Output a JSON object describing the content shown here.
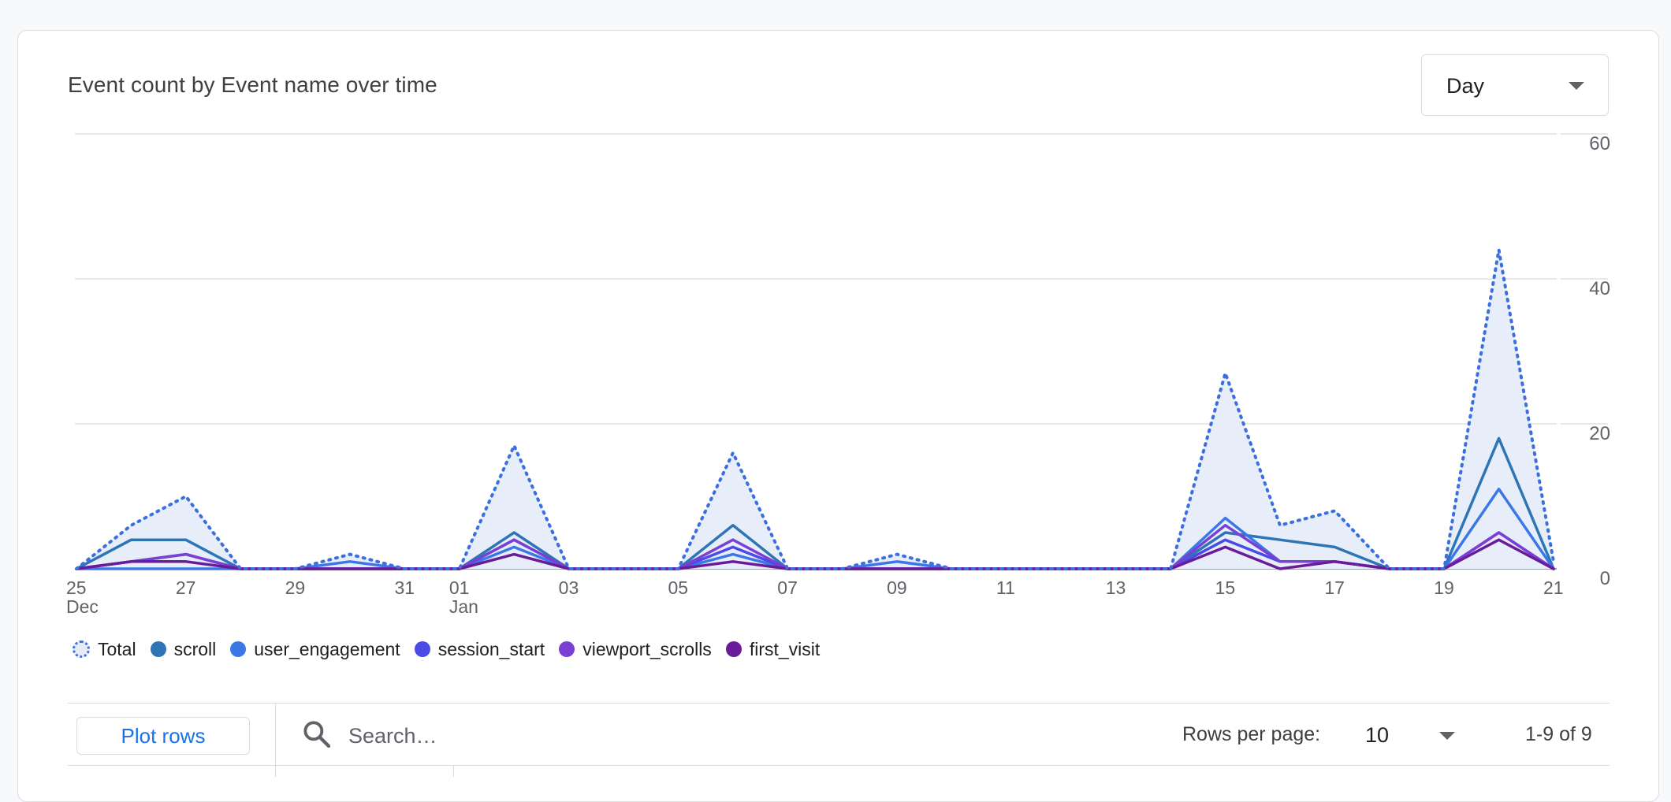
{
  "card": {
    "title": "Event count by Event name over time"
  },
  "granularity": {
    "value": "Day"
  },
  "chart_data": {
    "type": "line",
    "x": [
      "25 Dec",
      "26 Dec",
      "27 Dec",
      "28 Dec",
      "29 Dec",
      "30 Dec",
      "31 Dec",
      "01 Jan",
      "02 Jan",
      "03 Jan",
      "04 Jan",
      "05 Jan",
      "06 Jan",
      "07 Jan",
      "08 Jan",
      "09 Jan",
      "10 Jan",
      "11 Jan",
      "12 Jan",
      "13 Jan",
      "14 Jan",
      "15 Jan",
      "16 Jan",
      "17 Jan",
      "18 Jan",
      "19 Jan",
      "20 Jan",
      "21 Jan"
    ],
    "x_tick_labels": [
      {
        "index": 0,
        "line1": "25",
        "line2": "Dec"
      },
      {
        "index": 2,
        "line1": "27",
        "line2": ""
      },
      {
        "index": 4,
        "line1": "29",
        "line2": ""
      },
      {
        "index": 6,
        "line1": "31",
        "line2": ""
      },
      {
        "index": 7,
        "line1": "01",
        "line2": "Jan"
      },
      {
        "index": 9,
        "line1": "03",
        "line2": ""
      },
      {
        "index": 11,
        "line1": "05",
        "line2": ""
      },
      {
        "index": 13,
        "line1": "07",
        "line2": ""
      },
      {
        "index": 15,
        "line1": "09",
        "line2": ""
      },
      {
        "index": 17,
        "line1": "11",
        "line2": ""
      },
      {
        "index": 19,
        "line1": "13",
        "line2": ""
      },
      {
        "index": 21,
        "line1": "15",
        "line2": ""
      },
      {
        "index": 23,
        "line1": "17",
        "line2": ""
      },
      {
        "index": 25,
        "line1": "19",
        "line2": ""
      },
      {
        "index": 27,
        "line1": "21",
        "line2": ""
      }
    ],
    "y_ticks": [
      0,
      20,
      40,
      60
    ],
    "ylim": [
      0,
      60
    ],
    "grid": true,
    "legend_position": "bottom-left",
    "series": [
      {
        "name": "Total",
        "color": "#3b6fe0",
        "style": "dotted",
        "fill": "#e8eef9",
        "values": [
          0,
          6,
          10,
          0,
          0,
          2,
          0,
          0,
          17,
          0,
          0,
          0,
          16,
          0,
          0,
          2,
          0,
          0,
          0,
          0,
          0,
          27,
          6,
          8,
          0,
          0,
          44,
          1
        ]
      },
      {
        "name": "scroll",
        "color": "#2e75b6",
        "style": "solid",
        "values": [
          0,
          4,
          4,
          0,
          0,
          0,
          0,
          0,
          5,
          0,
          0,
          0,
          6,
          0,
          0,
          0,
          0,
          0,
          0,
          0,
          0,
          5,
          4,
          3,
          0,
          0,
          18,
          0
        ]
      },
      {
        "name": "user_engagement",
        "color": "#3b78e7",
        "style": "solid",
        "values": [
          0,
          0,
          0,
          0,
          0,
          1,
          0,
          0,
          3,
          0,
          0,
          0,
          2,
          0,
          0,
          1,
          0,
          0,
          0,
          0,
          0,
          7,
          1,
          1,
          0,
          0,
          11,
          0
        ]
      },
      {
        "name": "session_start",
        "color": "#4a4ae6",
        "style": "solid",
        "values": [
          0,
          1,
          2,
          0,
          0,
          0,
          0,
          0,
          4,
          0,
          0,
          0,
          3,
          0,
          0,
          0,
          0,
          0,
          0,
          0,
          0,
          4,
          1,
          1,
          0,
          0,
          5,
          0
        ]
      },
      {
        "name": "viewport_scrolls",
        "color": "#7b3fd3",
        "style": "solid",
        "values": [
          0,
          1,
          2,
          0,
          0,
          0,
          0,
          0,
          4,
          0,
          0,
          0,
          4,
          0,
          0,
          0,
          0,
          0,
          0,
          0,
          0,
          6,
          1,
          1,
          0,
          0,
          5,
          0
        ]
      },
      {
        "name": "first_visit",
        "color": "#6a1b9a",
        "style": "solid",
        "values": [
          0,
          1,
          1,
          0,
          0,
          0,
          0,
          0,
          2,
          0,
          0,
          0,
          1,
          0,
          0,
          0,
          0,
          0,
          0,
          0,
          0,
          3,
          0,
          1,
          0,
          0,
          4,
          0
        ]
      }
    ]
  },
  "table_controls": {
    "plot_rows_label": "Plot rows",
    "search_placeholder": "Search…",
    "rows_per_page_label": "Rows per page:",
    "rows_per_page_value": "10",
    "page_range": "1-9 of 9"
  }
}
